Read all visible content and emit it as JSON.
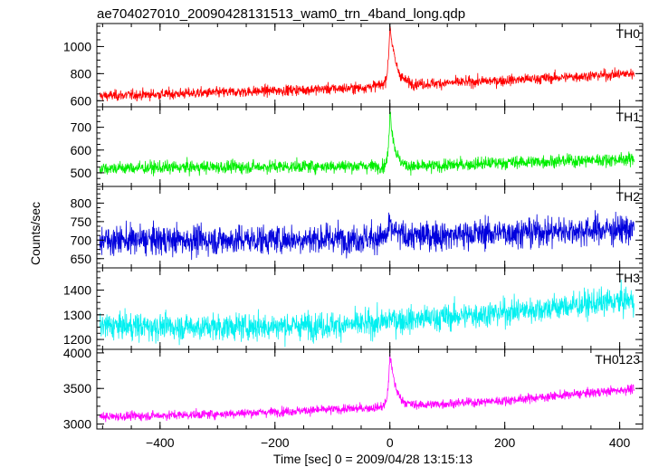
{
  "chart_data": {
    "type": "line",
    "title": "ae704027010_20090428131513_wam0_trn_4band_long.qdp",
    "xlabel": "Time [sec] 0 = 2009/04/28 13:15:13",
    "ylabel": "Counts/sec",
    "xlim": [
      -510,
      440
    ],
    "x_ticks": [
      -400,
      -200,
      0,
      200,
      400
    ],
    "x_tick_labels": [
      "−400",
      "−200",
      "0",
      "200",
      "400"
    ],
    "x_start": -505,
    "x_end": 425,
    "x_step": 0.5,
    "grid": false,
    "legend": "none",
    "panels": [
      {
        "name": "TH0",
        "color": "#ff0000",
        "ylim": [
          555,
          1170
        ],
        "y_ticks": [
          600,
          800,
          1000
        ],
        "y_tick_labels": [
          "600",
          "800",
          "1000"
        ],
        "baseline": [
          [
            -505,
            635
          ],
          [
            -300,
            660
          ],
          [
            -50,
            695
          ],
          [
            -5,
            720
          ],
          [
            40,
            720
          ],
          [
            200,
            750
          ],
          [
            420,
            800
          ]
        ],
        "noise": 28,
        "burst": {
          "time": 0,
          "peak": 1170,
          "width": 5
        }
      },
      {
        "name": "TH1",
        "color": "#00ee00",
        "ylim": [
          440,
          790
        ],
        "y_ticks": [
          500,
          600,
          700
        ],
        "y_tick_labels": [
          "500",
          "600",
          "700"
        ],
        "baseline": [
          [
            -505,
            520
          ],
          [
            -300,
            525
          ],
          [
            -50,
            530
          ],
          [
            40,
            525
          ],
          [
            200,
            545
          ],
          [
            420,
            560
          ]
        ],
        "noise": 20,
        "burst": {
          "time": 0,
          "peak": 785,
          "width": 4
        }
      },
      {
        "name": "TH2",
        "color": "#0000dd",
        "ylim": [
          625,
          845
        ],
        "y_ticks": [
          650,
          700,
          750,
          800
        ],
        "y_tick_labels": [
          "650",
          "700",
          "750",
          "800"
        ],
        "baseline": [
          [
            -505,
            700
          ],
          [
            -300,
            700
          ],
          [
            -50,
            705
          ],
          [
            40,
            710
          ],
          [
            200,
            720
          ],
          [
            420,
            730
          ]
        ],
        "noise": 28,
        "burst": {
          "time": 0,
          "peak": 740,
          "width": 5
        }
      },
      {
        "name": "TH3",
        "color": "#00f0f0",
        "ylim": [
          1160,
          1490
        ],
        "y_ticks": [
          1200,
          1300,
          1400
        ],
        "y_tick_labels": [
          "1200",
          "1300",
          "1400"
        ],
        "baseline": [
          [
            -505,
            1255
          ],
          [
            -300,
            1250
          ],
          [
            -50,
            1260
          ],
          [
            40,
            1280
          ],
          [
            200,
            1310
          ],
          [
            420,
            1360
          ]
        ],
        "noise": 38,
        "burst": {
          "time": 0,
          "peak": 1290,
          "width": 5
        }
      },
      {
        "name": "TH0123",
        "color": "#ff00ff",
        "ylim": [
          2930,
          4050
        ],
        "y_ticks": [
          3000,
          3500,
          4000
        ],
        "y_tick_labels": [
          "3000",
          "3500",
          "4000"
        ],
        "baseline": [
          [
            -505,
            3100
          ],
          [
            -300,
            3140
          ],
          [
            -50,
            3220
          ],
          [
            40,
            3260
          ],
          [
            200,
            3330
          ],
          [
            420,
            3490
          ]
        ],
        "noise": 45,
        "burst": {
          "time": 0,
          "peak": 4000,
          "width": 5
        }
      }
    ]
  }
}
